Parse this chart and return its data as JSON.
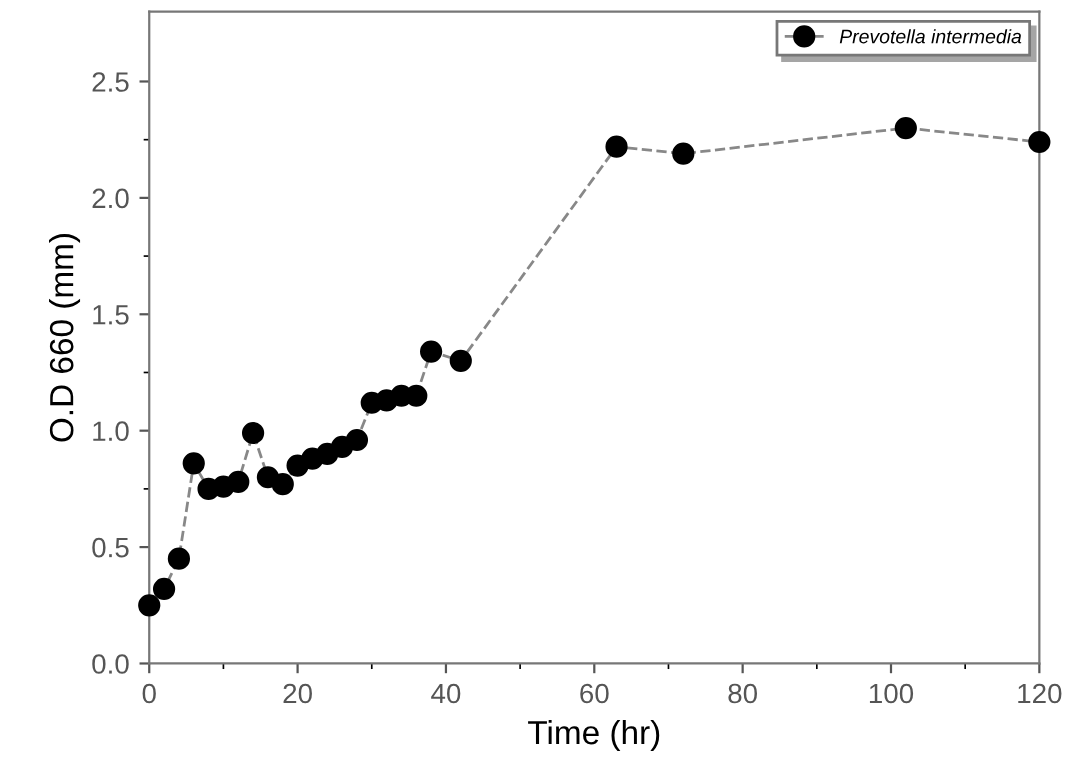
{
  "chart_data": {
    "type": "line",
    "xlabel": "Time (hr)",
    "ylabel": "O.D 660 (mm)",
    "xlim": [
      0,
      120
    ],
    "ylim": [
      0,
      2.8
    ],
    "xticks": [
      0,
      20,
      40,
      60,
      80,
      100,
      120
    ],
    "yticks": [
      {
        "value": 0,
        "label": "0.0"
      },
      0.5,
      {
        "value": 1,
        "label": "1.0"
      },
      1.5,
      {
        "value": 2,
        "label": "2.0"
      },
      2.5
    ],
    "marker": "circle",
    "line_style": "dashed",
    "legend": "top right",
    "grid": false,
    "series": [
      {
        "name": "Prevotella intermedia",
        "color": "#000000",
        "x": [
          0,
          2,
          4,
          6,
          8,
          10,
          12,
          14,
          16,
          18,
          20,
          22,
          24,
          26,
          28,
          30,
          32,
          34,
          36,
          38,
          42,
          63,
          72,
          102,
          120
        ],
        "values": [
          0.25,
          0.32,
          0.45,
          0.86,
          0.75,
          0.76,
          0.78,
          0.99,
          0.8,
          0.77,
          0.85,
          0.88,
          0.9,
          0.93,
          0.96,
          1.12,
          1.13,
          1.15,
          1.15,
          1.34,
          1.3,
          2.22,
          2.19,
          2.3,
          2.24
        ]
      }
    ]
  }
}
